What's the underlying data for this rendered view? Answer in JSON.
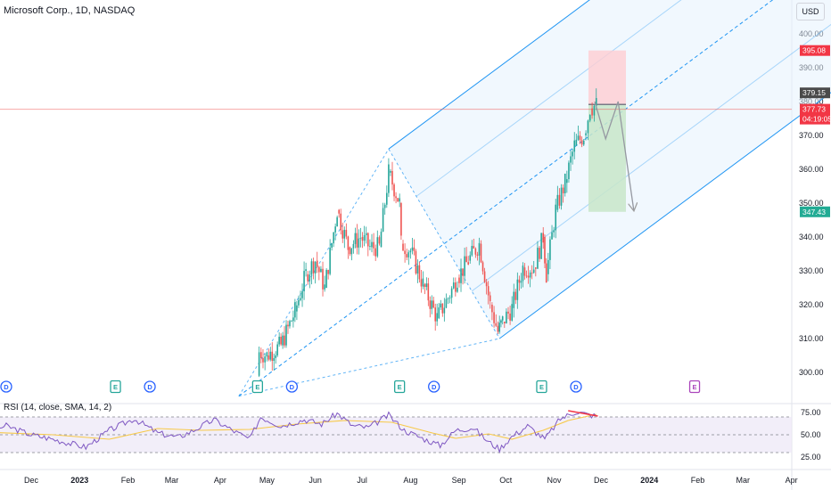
{
  "header": {
    "symbol_label": "Microsoft Corp., 1D, NASDAQ",
    "currency_button": "USD"
  },
  "rsi": {
    "label": "RSI (14, close, SMA, 14, 2)"
  },
  "colors": {
    "up": "#26a69a",
    "down": "#ef5350",
    "pitchfork": "#2196f3",
    "rsi_line": "#7e57c2",
    "rsi_sma": "#f7c948",
    "rsi_band": "#ede7f6",
    "stop_zone": "#ffcdd2",
    "target_zone": "#c8e6c9",
    "dividend": "#2962ff",
    "earnings_past": "#26a69a",
    "earnings_future": "#ab47bc",
    "price_line": "#ef5350"
  },
  "chart_data": {
    "type": "candlestick",
    "title": "Microsoft Corp., 1D, NASDAQ",
    "currency": "USD",
    "y_ticks": [
      300,
      310,
      320,
      330,
      340,
      350,
      360,
      370,
      380,
      390,
      400
    ],
    "y_tick_labels": [
      "300.00",
      "310.00",
      "320.00",
      "330.00",
      "340.00",
      "350.00",
      "360.00",
      "370.00",
      "380.00",
      "390.00",
      "400.00"
    ],
    "x_ticks": [
      {
        "label": "Dec",
        "date": "2022-12-01"
      },
      {
        "label": "2023",
        "date": "2023-01-01"
      },
      {
        "label": "Feb",
        "date": "2023-02-01"
      },
      {
        "label": "Mar",
        "date": "2023-03-01"
      },
      {
        "label": "Apr",
        "date": "2023-04-01"
      },
      {
        "label": "May",
        "date": "2023-05-01"
      },
      {
        "label": "Jun",
        "date": "2023-06-01"
      },
      {
        "label": "Jul",
        "date": "2023-07-01"
      },
      {
        "label": "Aug",
        "date": "2023-08-01"
      },
      {
        "label": "Sep",
        "date": "2023-09-01"
      },
      {
        "label": "Oct",
        "date": "2023-10-01"
      },
      {
        "label": "Nov",
        "date": "2023-11-01"
      },
      {
        "label": "Dec",
        "date": "2023-12-01"
      },
      {
        "label": "2024",
        "date": "2024-01-01"
      },
      {
        "label": "Feb",
        "date": "2024-02-01"
      },
      {
        "label": "Mar",
        "date": "2024-03-01"
      },
      {
        "label": "Apr",
        "date": "2024-04-01"
      }
    ],
    "price_path": [
      {
        "date": "2023-04-25",
        "close": 299
      },
      {
        "date": "2023-04-26",
        "close": 306
      },
      {
        "date": "2023-05-01",
        "close": 305
      },
      {
        "date": "2023-05-10",
        "close": 308
      },
      {
        "date": "2023-05-19",
        "close": 318
      },
      {
        "date": "2023-05-26",
        "close": 329
      },
      {
        "date": "2023-06-01",
        "close": 333
      },
      {
        "date": "2023-06-07",
        "close": 325
      },
      {
        "date": "2023-06-15",
        "close": 348
      },
      {
        "date": "2023-06-22",
        "close": 337
      },
      {
        "date": "2023-06-30",
        "close": 340
      },
      {
        "date": "2023-07-06",
        "close": 337
      },
      {
        "date": "2023-07-12",
        "close": 337
      },
      {
        "date": "2023-07-18",
        "close": 359
      },
      {
        "date": "2023-07-25",
        "close": 350
      },
      {
        "date": "2023-07-26",
        "close": 338
      },
      {
        "date": "2023-08-01",
        "close": 336
      },
      {
        "date": "2023-08-09",
        "close": 326
      },
      {
        "date": "2023-08-18",
        "close": 316
      },
      {
        "date": "2023-08-25",
        "close": 322
      },
      {
        "date": "2023-08-31",
        "close": 328
      },
      {
        "date": "2023-09-07",
        "close": 333
      },
      {
        "date": "2023-09-14",
        "close": 338
      },
      {
        "date": "2023-09-21",
        "close": 320
      },
      {
        "date": "2023-09-26",
        "close": 312
      },
      {
        "date": "2023-09-29",
        "close": 315
      },
      {
        "date": "2023-10-05",
        "close": 319
      },
      {
        "date": "2023-10-12",
        "close": 331
      },
      {
        "date": "2023-10-19",
        "close": 331
      },
      {
        "date": "2023-10-25",
        "close": 340
      },
      {
        "date": "2023-10-27",
        "close": 329
      },
      {
        "date": "2023-11-02",
        "close": 348
      },
      {
        "date": "2023-11-08",
        "close": 356
      },
      {
        "date": "2023-11-14",
        "close": 367
      },
      {
        "date": "2023-11-20",
        "close": 370
      },
      {
        "date": "2023-11-24",
        "close": 378
      },
      {
        "date": "2023-11-28",
        "close": 379
      }
    ],
    "price_labels": [
      {
        "label": "395.08",
        "value": 395.08,
        "color": "#f23645"
      },
      {
        "label": "379.15",
        "value": 379.15,
        "color": "#4a4a4a"
      },
      {
        "label": "377.73",
        "value": 377.73,
        "color": "#f23645"
      },
      {
        "label": "04:19:05",
        "value": 377.73,
        "color": "#f23645"
      },
      {
        "label": "347.43",
        "value": 347.43,
        "color": "#22ab94"
      }
    ],
    "current_price": 377.73,
    "short_position": {
      "entry": 379.15,
      "stop": 395.08,
      "target": 347.43,
      "start_date": "2023-11-23",
      "end_date": "2023-12-17"
    },
    "projection_path": [
      {
        "date": "2023-11-27",
        "value": 380
      },
      {
        "date": "2023-12-04",
        "value": 369
      },
      {
        "date": "2023-12-12",
        "value": 380
      },
      {
        "date": "2023-12-22",
        "value": 348
      }
    ],
    "pitchfork": {
      "points": [
        {
          "date": "2023-04-13",
          "value": 293
        },
        {
          "date": "2023-07-18",
          "value": 366
        },
        {
          "date": "2023-09-27",
          "value": 310
        }
      ]
    },
    "events": [
      {
        "type": "D",
        "date": "2022-11-15"
      },
      {
        "type": "E",
        "date": "2023-01-24"
      },
      {
        "type": "D",
        "date": "2023-02-15"
      },
      {
        "type": "E",
        "date": "2023-04-25"
      },
      {
        "type": "D",
        "date": "2023-05-17"
      },
      {
        "type": "E",
        "date": "2023-07-25"
      },
      {
        "type": "D",
        "date": "2023-08-16"
      },
      {
        "type": "E",
        "date": "2023-10-24"
      },
      {
        "type": "D",
        "date": "2023-11-15"
      },
      {
        "type": "E",
        "date": "2024-01-30"
      }
    ],
    "rsi": {
      "y_ticks": [
        25,
        50,
        75
      ],
      "y_tick_labels": [
        "25.00",
        "50.00",
        "75.00"
      ],
      "overbought": 70,
      "middle": 50,
      "oversold": 30,
      "line": [
        {
          "date": "2022-11-01",
          "value": 53
        },
        {
          "date": "2022-11-15",
          "value": 60
        },
        {
          "date": "2022-12-01",
          "value": 50
        },
        {
          "date": "2022-12-15",
          "value": 45
        },
        {
          "date": "2023-01-05",
          "value": 36
        },
        {
          "date": "2023-01-20",
          "value": 55
        },
        {
          "date": "2023-02-05",
          "value": 68
        },
        {
          "date": "2023-02-20",
          "value": 52
        },
        {
          "date": "2023-03-05",
          "value": 47
        },
        {
          "date": "2023-03-15",
          "value": 55
        },
        {
          "date": "2023-03-28",
          "value": 67
        },
        {
          "date": "2023-04-10",
          "value": 54
        },
        {
          "date": "2023-04-20",
          "value": 45
        },
        {
          "date": "2023-04-27",
          "value": 70
        },
        {
          "date": "2023-05-10",
          "value": 60
        },
        {
          "date": "2023-05-25",
          "value": 67
        },
        {
          "date": "2023-06-05",
          "value": 62
        },
        {
          "date": "2023-06-15",
          "value": 74
        },
        {
          "date": "2023-06-25",
          "value": 60
        },
        {
          "date": "2023-07-05",
          "value": 58
        },
        {
          "date": "2023-07-18",
          "value": 72
        },
        {
          "date": "2023-07-28",
          "value": 55
        },
        {
          "date": "2023-08-10",
          "value": 45
        },
        {
          "date": "2023-08-20",
          "value": 38
        },
        {
          "date": "2023-08-30",
          "value": 55
        },
        {
          "date": "2023-09-10",
          "value": 58
        },
        {
          "date": "2023-09-20",
          "value": 42
        },
        {
          "date": "2023-09-27",
          "value": 34
        },
        {
          "date": "2023-10-05",
          "value": 48
        },
        {
          "date": "2023-10-15",
          "value": 60
        },
        {
          "date": "2023-10-26",
          "value": 45
        },
        {
          "date": "2023-11-05",
          "value": 68
        },
        {
          "date": "2023-11-15",
          "value": 76
        },
        {
          "date": "2023-11-22",
          "value": 73
        },
        {
          "date": "2023-11-28",
          "value": 71
        }
      ],
      "sma": [
        {
          "date": "2022-11-01",
          "value": 53
        },
        {
          "date": "2022-12-15",
          "value": 50
        },
        {
          "date": "2023-01-20",
          "value": 45
        },
        {
          "date": "2023-02-20",
          "value": 57
        },
        {
          "date": "2023-03-20",
          "value": 55
        },
        {
          "date": "2023-04-20",
          "value": 56
        },
        {
          "date": "2023-05-20",
          "value": 62
        },
        {
          "date": "2023-06-20",
          "value": 66
        },
        {
          "date": "2023-07-20",
          "value": 64
        },
        {
          "date": "2023-08-15",
          "value": 52
        },
        {
          "date": "2023-08-30",
          "value": 46
        },
        {
          "date": "2023-09-20",
          "value": 51
        },
        {
          "date": "2023-10-05",
          "value": 45
        },
        {
          "date": "2023-10-25",
          "value": 55
        },
        {
          "date": "2023-11-10",
          "value": 66
        },
        {
          "date": "2023-11-28",
          "value": 73
        }
      ],
      "divergence_line": [
        {
          "date": "2023-11-10",
          "value": 77
        },
        {
          "date": "2023-11-29",
          "value": 71
        }
      ]
    }
  }
}
